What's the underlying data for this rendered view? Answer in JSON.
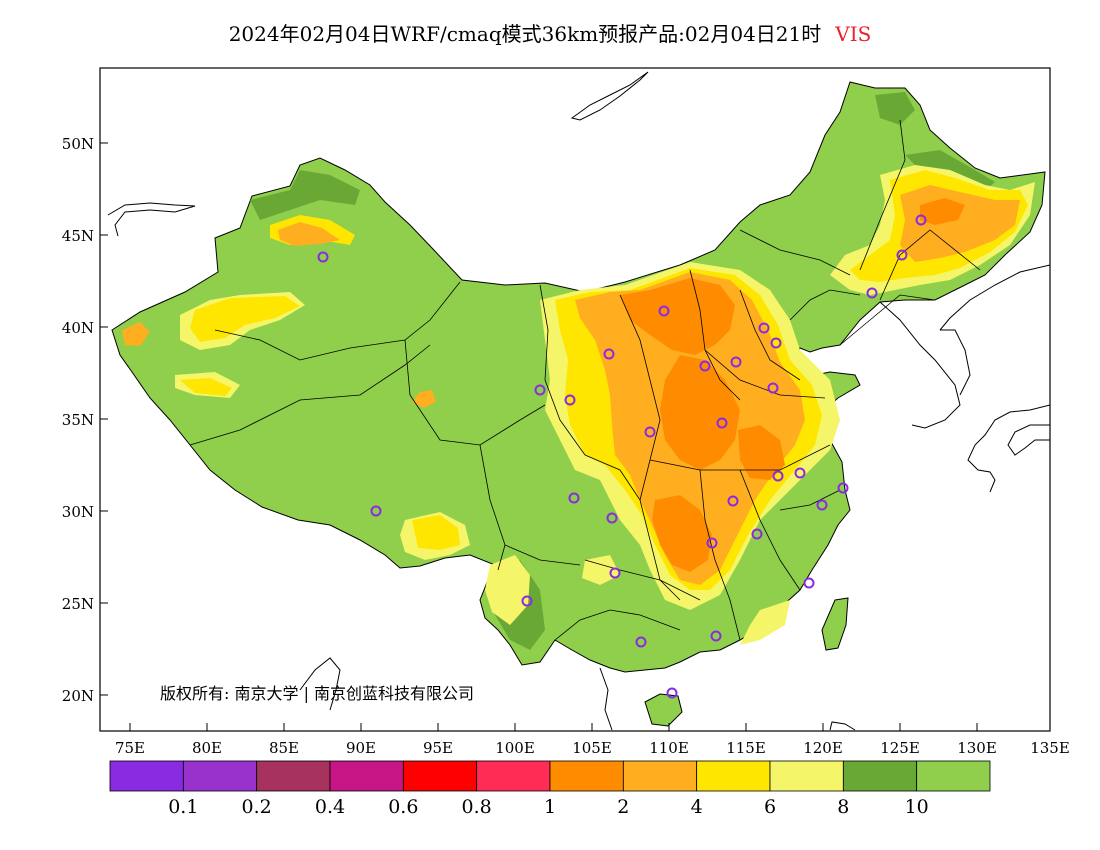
{
  "title": {
    "main": "2024年02月04日WRF/cmaq模式36km预报产品:02月04日21时",
    "variable": "VIS"
  },
  "axes": {
    "lat_ticks": [
      "50N",
      "45N",
      "40N",
      "35N",
      "30N",
      "25N",
      "20N"
    ],
    "lon_ticks": [
      "75E",
      "80E",
      "85E",
      "90E",
      "95E",
      "100E",
      "105E",
      "110E",
      "115E",
      "120E",
      "125E",
      "130E",
      "135E"
    ]
  },
  "copyright": "版权所有: 南京大学 | 南京创蓝科技有限公司",
  "legend": {
    "colors": [
      "#8a2be2",
      "#9932cc",
      "#a8325e",
      "#c71585",
      "#ff0000",
      "#ff2d55",
      "#ff8c00",
      "#ffae1f",
      "#ffe600",
      "#f5f56a",
      "#6aa836",
      "#8fcf4c"
    ],
    "labels": [
      "0.1",
      "0.2",
      "0.4",
      "0.6",
      "0.8",
      "1",
      "2",
      "4",
      "6",
      "8",
      "10"
    ]
  },
  "map": {
    "land_color": "#8fcf4c",
    "dark_green": "#6aa836",
    "light_yellow": "#f5f56a",
    "yellow": "#ffe600",
    "orange_light": "#ffae1f",
    "orange": "#ff8c00",
    "station_marker_color": "#8a2be2",
    "lat_range": [
      18,
      54
    ],
    "lon_range": [
      73,
      135
    ]
  }
}
